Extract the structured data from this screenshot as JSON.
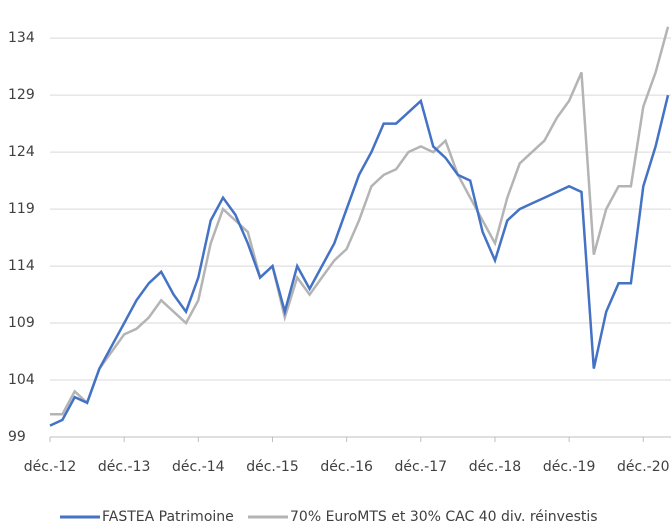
{
  "chart_data": {
    "type": "line",
    "categories": [
      "déc.-12",
      null,
      null,
      null,
      null,
      null,
      "déc.-13",
      null,
      null,
      null,
      null,
      null,
      "déc.-14",
      null,
      null,
      null,
      null,
      null,
      "déc.-15",
      null,
      null,
      null,
      null,
      null,
      "déc.-16",
      null,
      null,
      null,
      null,
      null,
      "déc.-17",
      null,
      null,
      null,
      null,
      null,
      "déc.-18",
      null,
      null,
      null,
      null,
      null,
      "déc.-19",
      null,
      null,
      null,
      null,
      null,
      "déc.-20",
      null,
      null
    ],
    "series": [
      {
        "name": "FASTEA Patrimoine",
        "color": "#4472c4",
        "values": [
          100,
          100.5,
          102.5,
          102,
          105,
          107,
          109,
          111,
          112.5,
          113.5,
          111.5,
          110,
          113,
          118,
          120,
          118.5,
          116,
          113,
          114,
          110,
          114,
          112,
          114,
          116,
          119,
          122,
          124,
          126.5,
          126.5,
          127.5,
          128.5,
          124.5,
          123.5,
          122,
          121.5,
          117,
          114.5,
          118,
          119,
          119.5,
          120,
          120.5,
          121,
          120.5,
          105,
          110,
          112.5,
          112.5,
          121,
          124.5,
          129
        ]
      },
      {
        "name": "70% EuroMTS et 30% CAC 40 div. réinvestis",
        "color": "#b4b4b4",
        "values": [
          101,
          101,
          103,
          102,
          105,
          106.5,
          108,
          108.5,
          109.5,
          111,
          110,
          109,
          111,
          116,
          119,
          118,
          117,
          113,
          114,
          109.5,
          113,
          111.5,
          113,
          114.5,
          115.5,
          118,
          121,
          122,
          122.5,
          124,
          124.5,
          124,
          125,
          122,
          120,
          118,
          116,
          120,
          123,
          124,
          125,
          127,
          128.5,
          131,
          115,
          119,
          121,
          121,
          128,
          131,
          135
        ]
      }
    ],
    "ylim": [
      99,
      137
    ],
    "yticks": [
      99,
      104,
      109,
      114,
      119,
      124,
      129,
      134
    ],
    "grid": true,
    "legend": "bottom"
  }
}
